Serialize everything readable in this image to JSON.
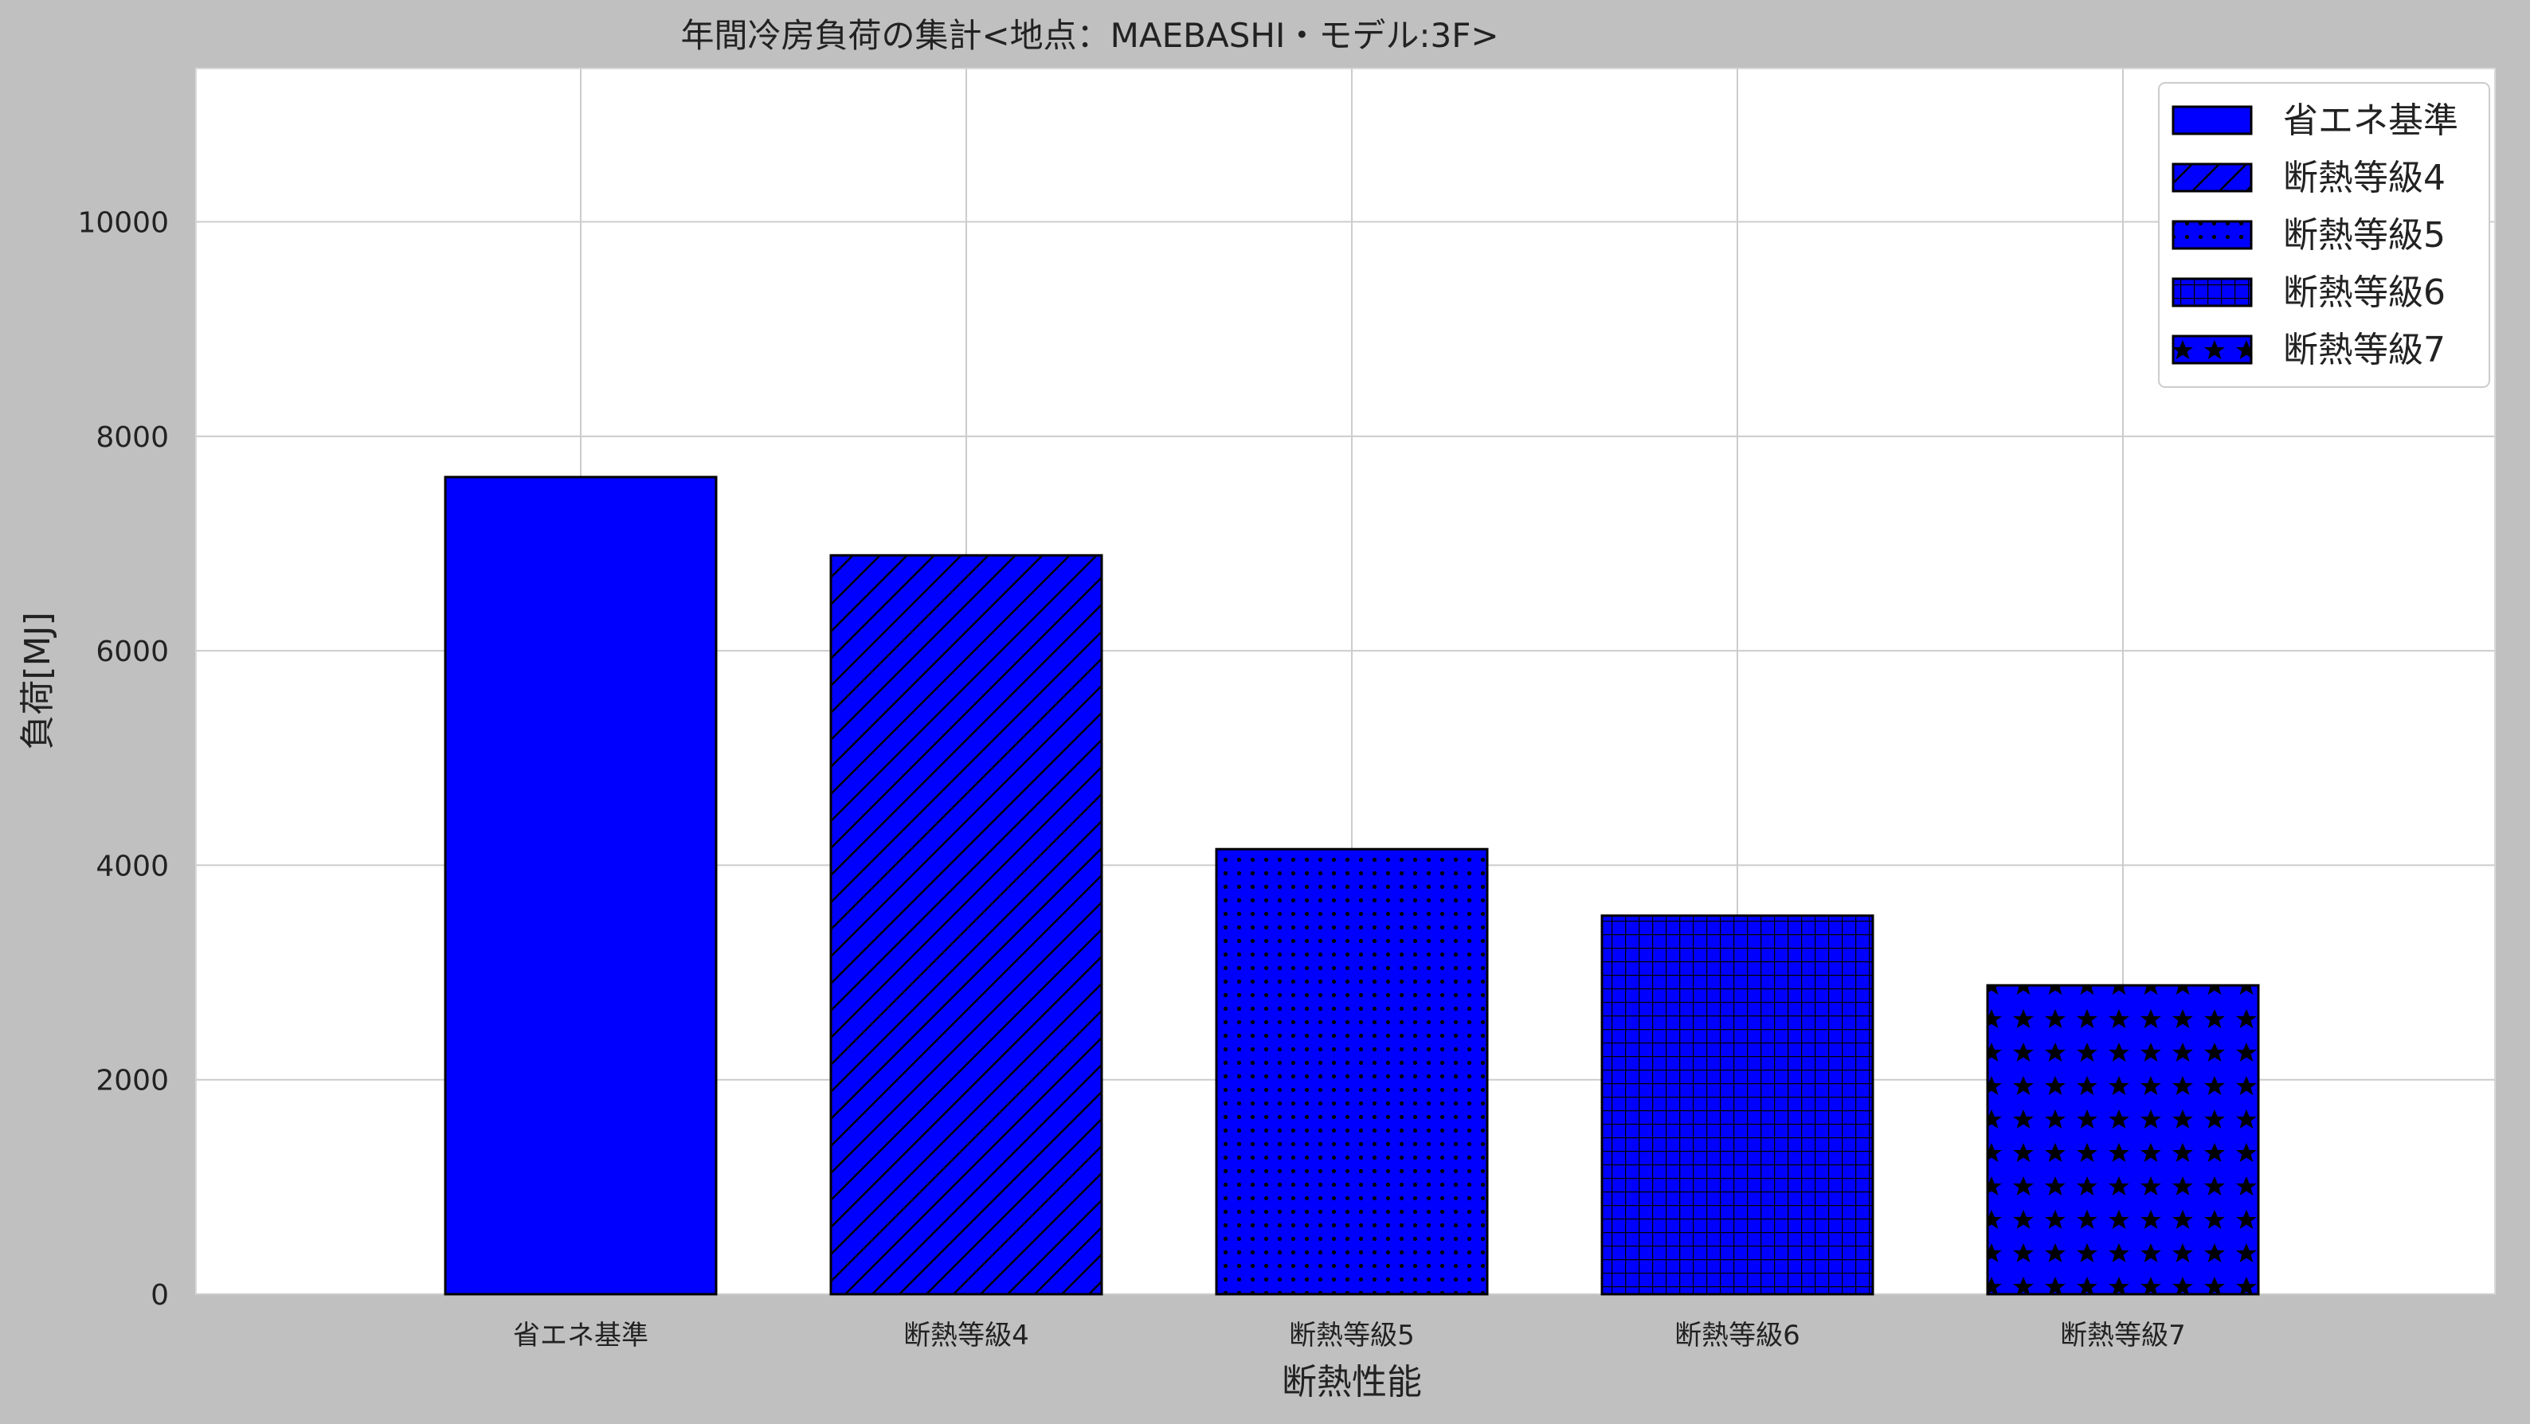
{
  "colors": {
    "background": "#c0c0c0",
    "plot_background": "#ffffff",
    "bar_fill": "#0000ff",
    "bar_edge": "#000000",
    "grid": "#cccccc"
  },
  "chart_data": {
    "type": "bar",
    "title": "年間冷房負荷の集計<地点：MAEBASHI・モデル:3F>",
    "xlabel": "断熱性能",
    "ylabel": "負荷[MJ]",
    "categories": [
      "省エネ基準",
      "断熱等級4",
      "断熱等級5",
      "断熱等級6",
      "断熱等級7"
    ],
    "values": [
      7620,
      6890,
      4150,
      3530,
      2880
    ],
    "hatches": [
      "none",
      "diagonal",
      "dots",
      "grid",
      "stars"
    ],
    "ylim": [
      0,
      11430
    ],
    "yticks": [
      0,
      2000,
      4000,
      6000,
      8000,
      10000
    ],
    "grid": true,
    "legend": {
      "position": "top-right",
      "entries": [
        "省エネ基準",
        "断熱等級4",
        "断熱等級5",
        "断熱等級6",
        "断熱等級7"
      ]
    }
  }
}
